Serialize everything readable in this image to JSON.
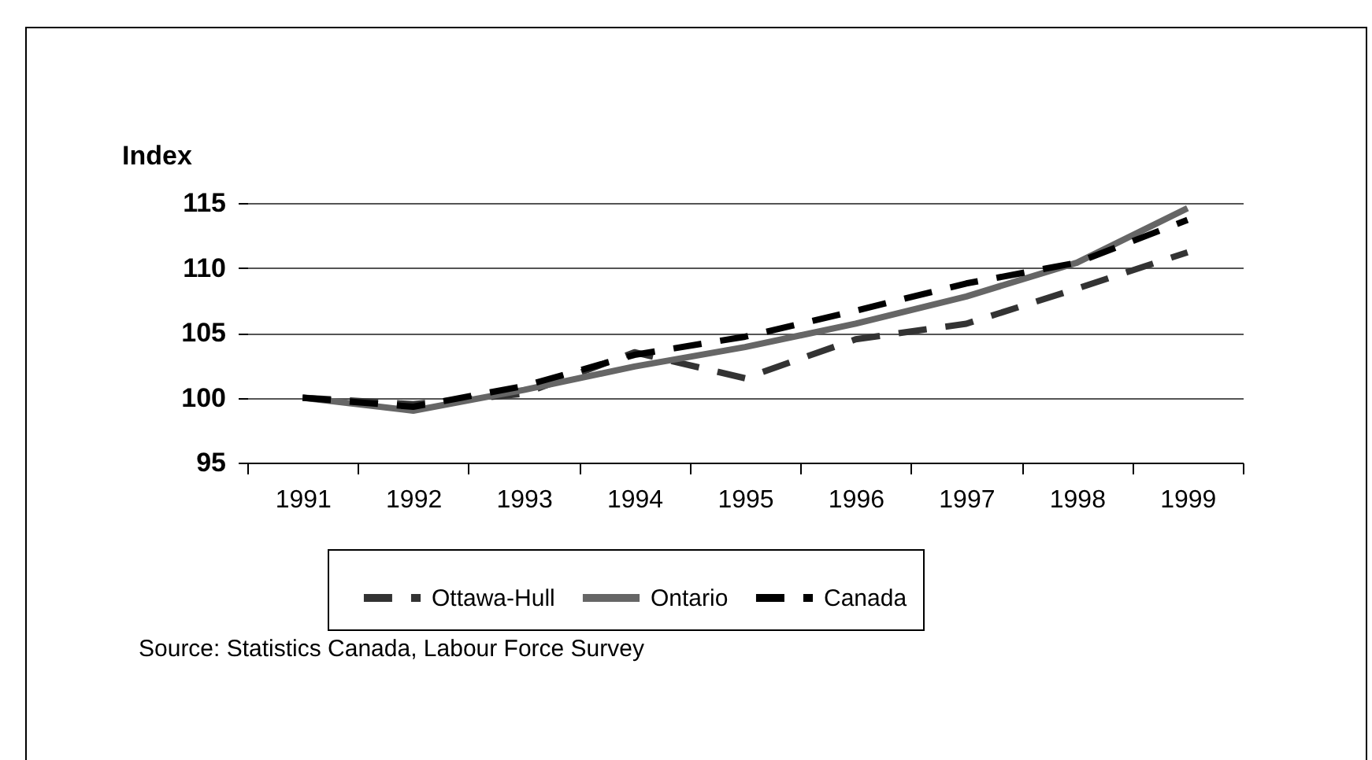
{
  "chart_data": {
    "type": "line",
    "ylabel": "Index",
    "categories": [
      "1991",
      "1992",
      "1993",
      "1994",
      "1995",
      "1996",
      "1997",
      "1998",
      "1999"
    ],
    "series": [
      {
        "name": "Ottawa-Hull",
        "color": "#333333",
        "line_style": "dashed",
        "values": [
          100,
          99.5,
          100.3,
          103.5,
          101.5,
          104.5,
          105.7,
          108.4,
          111.2
        ]
      },
      {
        "name": "Ontario",
        "color": "#666666",
        "line_style": "solid",
        "values": [
          100,
          99.0,
          100.6,
          102.4,
          103.9,
          105.7,
          107.8,
          110.4,
          114.6
        ]
      },
      {
        "name": "Canada",
        "color": "#000000",
        "line_style": "dashed",
        "values": [
          100,
          99.3,
          100.9,
          103.3,
          104.7,
          106.7,
          108.8,
          110.4,
          113.7
        ]
      }
    ],
    "ylim": [
      95,
      115
    ],
    "yticks": [
      95,
      100,
      105,
      110,
      115
    ],
    "grid": "y",
    "legend": "bottom",
    "annotations": [
      "Source: Statistics Canada, Labour Force Survey"
    ]
  }
}
